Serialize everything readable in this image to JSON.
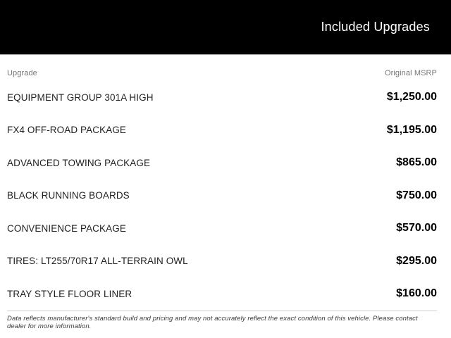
{
  "header": {
    "title": "Included Upgrades"
  },
  "table": {
    "columns": {
      "upgrade": "Upgrade",
      "msrp": "Original MSRP"
    },
    "rows": [
      {
        "name": "EQUIPMENT GROUP 301A HIGH",
        "price": "$1,250.00"
      },
      {
        "name": "FX4 OFF-ROAD PACKAGE",
        "price": "$1,195.00"
      },
      {
        "name": "ADVANCED TOWING PACKAGE",
        "price": "$865.00"
      },
      {
        "name": "BLACK RUNNING BOARDS",
        "price": "$750.00"
      },
      {
        "name": "CONVENIENCE PACKAGE",
        "price": "$570.00"
      },
      {
        "name": "TIRES: LT255/70R17 ALL-TERRAIN OWL",
        "price": "$295.00"
      },
      {
        "name": "TRAY STYLE FLOOR LINER",
        "price": "$160.00"
      }
    ]
  },
  "footer": {
    "disclaimer": "Data reflects manufacturer's standard build and pricing and may not accurately reflect the exact condition of this vehicle. Please contact dealer for more information."
  },
  "colors": {
    "header_bg": "#000000",
    "header_fg": "#ffffff",
    "column_label": "#757575",
    "row_name": "#1f1f1f",
    "price": "#000000",
    "divider": "#cccccc"
  }
}
